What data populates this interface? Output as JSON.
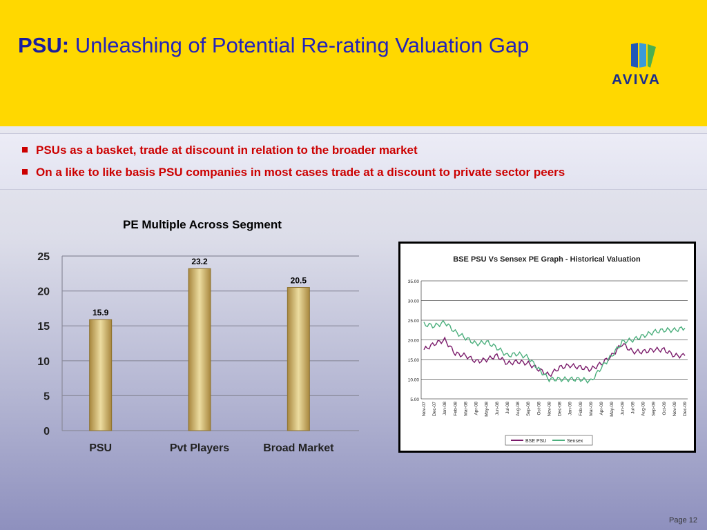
{
  "header": {
    "title_bold": "PSU:",
    "title_rest": "Unleashing of Potential Re-rating Valuation Gap",
    "logo_text": "AVIVA"
  },
  "bullets": [
    "PSUs as a basket, trade at discount in relation to the broader market",
    "On a like to like basis PSU companies in most cases trade at a discount to private sector peers"
  ],
  "colors": {
    "header_bg": "#ffd800",
    "title_blue": "#2323b8",
    "bullet_red": "#cc0000",
    "bar_gold": "#d9c27a",
    "psu_line": "#7a1a6a",
    "sensex_line": "#4caf7d"
  },
  "chart_data": [
    {
      "type": "bar",
      "title": "PE Multiple Across Segment",
      "categories": [
        "PSU",
        "Pvt Players",
        "Broad Market"
      ],
      "values": [
        15.9,
        23.2,
        20.5
      ],
      "data_labels": [
        "15.9",
        "23.2",
        "20.5"
      ],
      "ylim": [
        0,
        25
      ],
      "yticks": [
        "0",
        "5",
        "10",
        "15",
        "20",
        "25"
      ],
      "grid": true
    },
    {
      "type": "line",
      "title": "BSE PSU Vs Sensex PE Graph - Historical Valuation",
      "ylim": [
        5,
        35
      ],
      "yticks": [
        "5.00",
        "10.00",
        "15.00",
        "20.00",
        "25.00",
        "30.00",
        "35.00"
      ],
      "x": [
        "Nov-07",
        "Dec-07",
        "Jan-08",
        "Feb-08",
        "Mar-08",
        "Apr-08",
        "May-08",
        "Jun-08",
        "Jul-08",
        "Aug-08",
        "Sep-08",
        "Oct-08",
        "Nov-08",
        "Dec-08",
        "Jan-09",
        "Feb-09",
        "Mar-09",
        "Apr-09",
        "May-09",
        "Jun-09",
        "Jul-09",
        "Aug-09",
        "Sep-09",
        "Oct-09",
        "Nov-09",
        "Dec-09"
      ],
      "series": [
        {
          "name": "BSE PSU",
          "values": [
            17.5,
            19,
            20,
            16.5,
            16,
            14.5,
            15,
            16,
            14,
            14.5,
            14,
            12.5,
            11,
            13,
            13.5,
            13,
            12.5,
            14,
            16,
            19,
            17,
            17,
            17.5,
            17.5,
            16,
            16
          ]
        },
        {
          "name": "Sensex",
          "values": [
            24,
            23.5,
            24.5,
            22,
            20.5,
            19,
            19.5,
            18,
            16,
            16.5,
            15.5,
            12.5,
            10,
            10,
            10,
            10,
            9.5,
            13,
            16,
            19.5,
            20,
            21,
            22,
            22.5,
            22.5,
            23
          ]
        }
      ],
      "legend": "bottom"
    }
  ],
  "footer": {
    "page": "Page 12"
  }
}
